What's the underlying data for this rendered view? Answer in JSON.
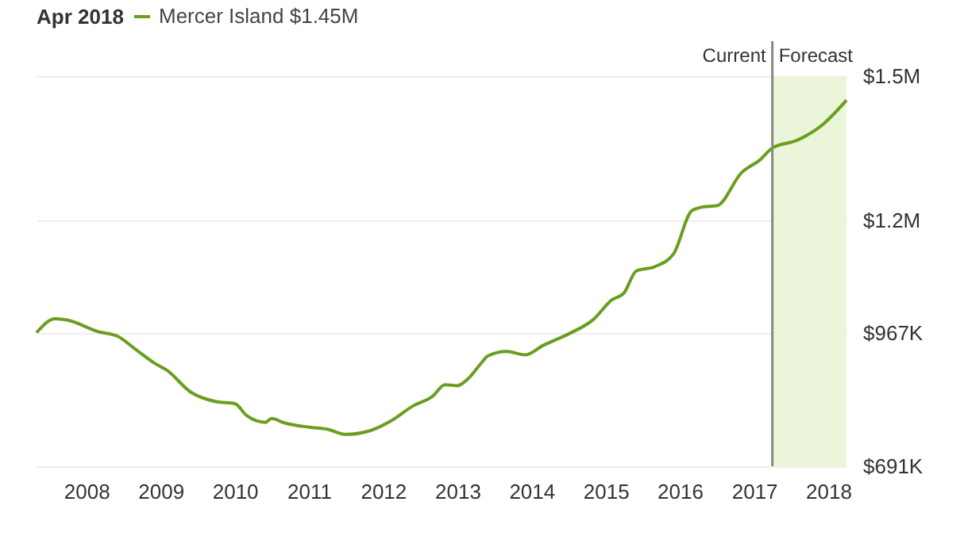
{
  "chart_data": {
    "type": "line",
    "legend_title": "Apr 2018",
    "legend": "top left",
    "grid": "y",
    "marker": "none",
    "line_style": "solid",
    "x": [
      "2007-05",
      "2007-08",
      "2007-10",
      "2008-03",
      "2008-06",
      "2008-09",
      "2008-12",
      "2009-02",
      "2009-06",
      "2009-08",
      "2009-10",
      "2010-01",
      "2010-03",
      "2010-06",
      "2010-07",
      "2010-09",
      "2011-01",
      "2011-04",
      "2011-07",
      "2011-11",
      "2012-02",
      "2012-06",
      "2012-09",
      "2012-11",
      "2013-01",
      "2013-03",
      "2013-05",
      "2013-06",
      "2013-09",
      "2013-12",
      "2014-03",
      "2014-07",
      "2014-11",
      "2015-02",
      "2015-04",
      "2015-06",
      "2015-09",
      "2015-12",
      "2016-03",
      "2016-05",
      "2016-07",
      "2016-11",
      "2017-02",
      "2017-04",
      "2017-08",
      "2017-12",
      "2018-04"
    ],
    "series": [
      {
        "name": "Mercer Island $1.45M",
        "color": "#6a9e1f",
        "values": [
          968000,
          997000,
          994000,
          970000,
          961000,
          933000,
          905000,
          890000,
          844000,
          832000,
          825000,
          821000,
          796000,
          782000,
          790000,
          781000,
          772000,
          768000,
          757000,
          765000,
          783000,
          817000,
          836000,
          860000,
          858000,
          875000,
          906000,
          920000,
          929000,
          922000,
          942000,
          965000,
          995000,
          1036000,
          1050000,
          1096000,
          1105000,
          1131000,
          1221000,
          1229000,
          1231000,
          1300000,
          1327000,
          1351000,
          1367000,
          1398000,
          1450000
        ]
      }
    ],
    "xlim": [
      "2007-05",
      "2018-04"
    ],
    "xticks": [
      "2008",
      "2009",
      "2010",
      "2011",
      "2012",
      "2013",
      "2014",
      "2015",
      "2016",
      "2017",
      "2018"
    ],
    "ylim": [
      691000,
      1500000
    ],
    "yticks": [
      {
        "value": 691000,
        "label": "$691K"
      },
      {
        "value": 967000,
        "label": "$967K"
      },
      {
        "value": 1200000,
        "label": "$1.2M"
      },
      {
        "value": 1500000,
        "label": "$1.5M"
      }
    ],
    "ref_lines": [
      {
        "axis": "x",
        "value": "2017-04",
        "label": "Current",
        "color": "#888888"
      }
    ],
    "bands": [
      {
        "axis": "x",
        "from": "2017-04",
        "to": "2018-04",
        "label": "Forecast",
        "color": "#eaf5d9"
      }
    ]
  }
}
